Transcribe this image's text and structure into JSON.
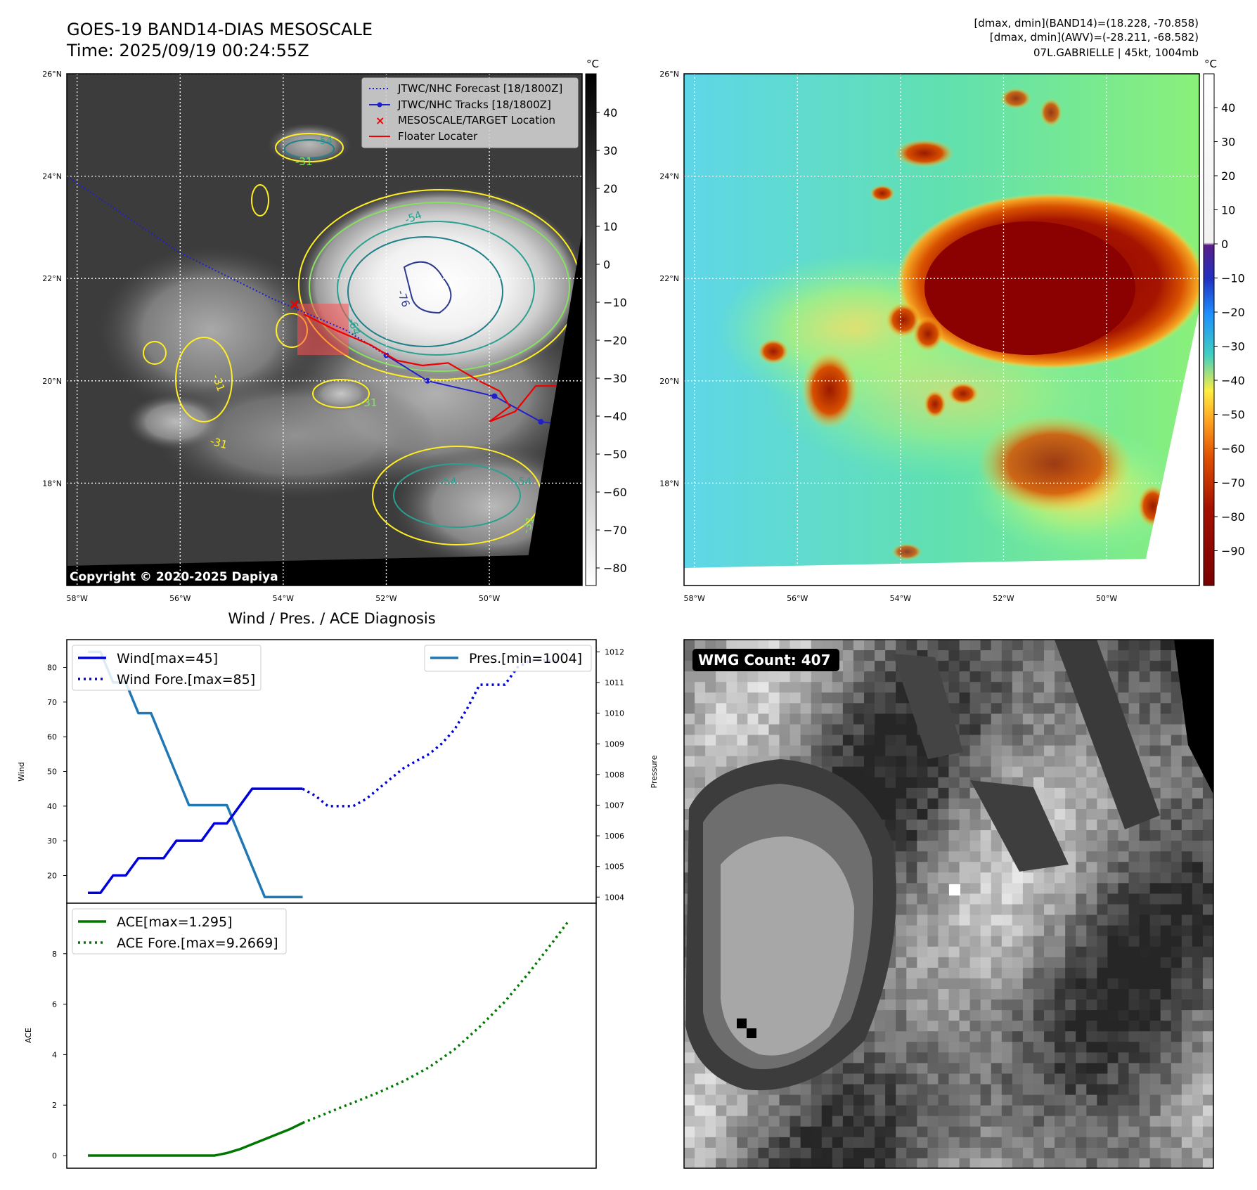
{
  "header": {
    "title_line1": "GOES-19 BAND14-DIAS MESOSCALE",
    "title_line2": "Time: 2025/09/19 00:24:55Z",
    "info_line1": "[dmax, dmin](BAND14)=(18.228, -70.858)",
    "info_line2": "[dmax, dmin](AWV)=(-28.211, -68.582)",
    "info_line3": "07L.GABRIELLE | 45kt, 1004mb"
  },
  "map_axes": {
    "lat_labels": [
      "26°N",
      "24°N",
      "22°N",
      "20°N",
      "18°N"
    ],
    "lat_values": [
      26,
      24,
      22,
      20,
      18
    ],
    "lon_labels": [
      "58°W",
      "56°W",
      "54°W",
      "52°W",
      "50°W"
    ],
    "lon_values": [
      -58,
      -56,
      -54,
      -52,
      -50
    ],
    "lat_range": [
      16.0,
      26.0
    ],
    "lon_range": [
      -58.2,
      -48.2
    ]
  },
  "ir_panel": {
    "legend": [
      {
        "label": "JTWC/NHC Forecast [18/1800Z]",
        "color": "#1f1fcc",
        "style": "dotted"
      },
      {
        "label": "JTWC/NHC Tracks [18/1800Z]",
        "color": "#1f1fcc",
        "style": "line-marker"
      },
      {
        "label": "MESOSCALE/TARGET Location",
        "color": "#ee0000",
        "style": "x"
      },
      {
        "label": "Floater Locater",
        "color": "#ee0000",
        "style": "line"
      }
    ],
    "copyright": "Copyright © 2020-2025 Dapiya",
    "contour_labels": [
      "-54",
      "-76",
      "-64",
      "-31",
      "-54",
      "-31",
      "-31",
      "-31",
      "-54",
      "-54",
      "-31"
    ],
    "colorbar": {
      "unit": "°C",
      "ticks": [
        "40",
        "30",
        "20",
        "10",
        "0",
        "−10",
        "−20",
        "−30",
        "−40",
        "−50",
        "−60",
        "−70",
        "−80"
      ]
    },
    "target_location": {
      "lat": 21.5,
      "lon": -53.8
    },
    "forecast_track": [
      [
        24.0,
        -58.2
      ],
      [
        22.5,
        -56.0
      ],
      [
        21.6,
        -54.2
      ],
      [
        21.0,
        -52.8
      ],
      [
        20.5,
        -52.0
      ]
    ],
    "best_track": [
      [
        20.5,
        -52.0
      ],
      [
        20.0,
        -51.2
      ],
      [
        19.7,
        -49.9
      ],
      [
        19.2,
        -49.0
      ],
      [
        19.1,
        -48.2
      ]
    ]
  },
  "awv_panel": {
    "colorbar": {
      "unit": "°C",
      "ticks": [
        "40",
        "30",
        "20",
        "10",
        "0",
        "−10",
        "−20",
        "−30",
        "−40",
        "−50",
        "−60",
        "−70",
        "−80",
        "−90"
      ]
    }
  },
  "diagnosis": {
    "title": "Wind / Pres. / ACE Diagnosis",
    "wind_ylabel": "Wind",
    "pres_ylabel": "Pressure",
    "ace_ylabel": "ACE",
    "wind_legend": [
      "Wind[max=45]",
      "Wind Fore.[max=85]"
    ],
    "pres_legend": "Pres.[min=1004]",
    "ace_legend": [
      "ACE[max=1.295]",
      "ACE Fore.[max=9.2669]"
    ],
    "wind_ticks": [
      "80",
      "70",
      "60",
      "50",
      "40",
      "30",
      "20"
    ],
    "pres_ticks": [
      "1012",
      "1011",
      "1010",
      "1009",
      "1008",
      "1007",
      "1006",
      "1005",
      "1004"
    ],
    "ace_ticks": [
      "8",
      "6",
      "4",
      "2",
      "0"
    ]
  },
  "chart_data": [
    {
      "type": "line",
      "title": "",
      "xlabel": "",
      "ylabel": "Wind",
      "ylim": [
        12,
        88
      ],
      "x": [
        0,
        1,
        2,
        3,
        4,
        5,
        6,
        7,
        8,
        9,
        10,
        11,
        12,
        13,
        14,
        15,
        16,
        17,
        18,
        19,
        20,
        21,
        22,
        23,
        24,
        25,
        26,
        27,
        28,
        29,
        30,
        31,
        32,
        33,
        34,
        35,
        36,
        37,
        38
      ],
      "series": [
        {
          "name": "Wind[max=45]",
          "color": "#0000dd",
          "style": "solid",
          "x": [
            0,
            1,
            2,
            3,
            4,
            5,
            6,
            7,
            8,
            9,
            10,
            11,
            12,
            13,
            14,
            15,
            16,
            17
          ],
          "values": [
            15,
            15,
            20,
            20,
            25,
            25,
            25,
            30,
            30,
            30,
            35,
            35,
            40,
            45,
            45,
            45,
            45,
            45
          ]
        },
        {
          "name": "Wind Fore.[max=85]",
          "color": "#0000dd",
          "style": "dotted",
          "x": [
            17,
            18,
            19,
            20,
            21,
            22,
            23,
            24,
            25,
            26,
            27,
            28,
            29,
            30,
            31,
            32,
            33,
            34,
            35,
            36,
            37,
            38
          ],
          "values": [
            45,
            43,
            40,
            40,
            40,
            42,
            45,
            48,
            51,
            53,
            55,
            58,
            62,
            68,
            75,
            75,
            75,
            80,
            82,
            82,
            82,
            85
          ]
        }
      ]
    },
    {
      "type": "line",
      "title": "",
      "xlabel": "",
      "ylabel": "Pressure",
      "ylim": [
        1003.8,
        1012.4
      ],
      "series": [
        {
          "name": "Pres.[min=1004]",
          "color": "#1f77b4",
          "style": "solid",
          "x": [
            0,
            1,
            2,
            3,
            4,
            5,
            6,
            7,
            8,
            9,
            10,
            11,
            12,
            13,
            14,
            15,
            16,
            17
          ],
          "values": [
            1012,
            1012,
            1011,
            1011,
            1010,
            1010,
            1009,
            1008,
            1007,
            1007,
            1007,
            1007,
            1006,
            1005,
            1004,
            1004,
            1004,
            1004
          ]
        }
      ]
    },
    {
      "type": "line",
      "title": "",
      "xlabel": "",
      "ylabel": "ACE",
      "ylim": [
        -0.5,
        10.0
      ],
      "series": [
        {
          "name": "ACE[max=1.295]",
          "color": "#007700",
          "style": "solid",
          "x": [
            0,
            2,
            4,
            6,
            8,
            10,
            11,
            12,
            13,
            14,
            15,
            16,
            17
          ],
          "values": [
            0,
            0,
            0,
            0,
            0,
            0,
            0.1,
            0.25,
            0.45,
            0.65,
            0.85,
            1.05,
            1.295
          ]
        },
        {
          "name": "ACE Fore.[max=9.2669]",
          "color": "#007700",
          "style": "dotted",
          "x": [
            17,
            19,
            21,
            23,
            25,
            27,
            29,
            31,
            33,
            35,
            37,
            38
          ],
          "values": [
            1.295,
            1.7,
            2.1,
            2.5,
            2.95,
            3.5,
            4.2,
            5.1,
            6.1,
            7.3,
            8.6,
            9.2669
          ]
        }
      ]
    }
  ],
  "wmg_panel": {
    "label": "WMG Count: 407"
  }
}
